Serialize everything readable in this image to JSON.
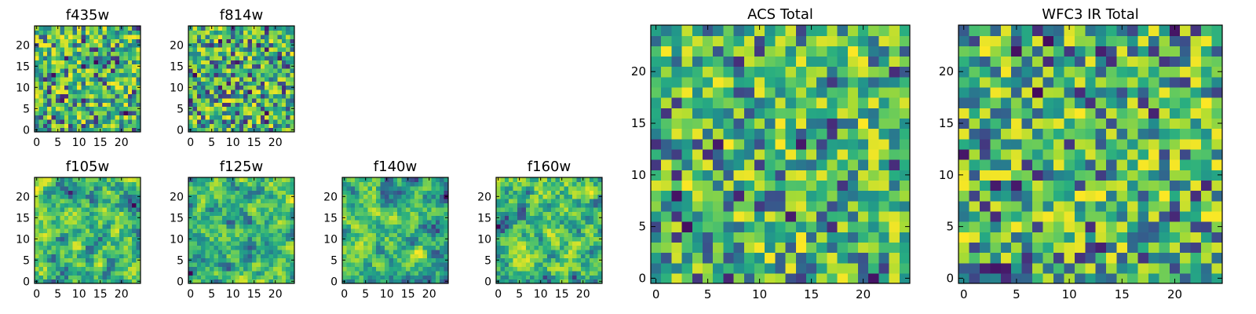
{
  "chart_data": {
    "type": "heatmap",
    "grid_size": 25,
    "colormap": "viridis",
    "panels": [
      {
        "id": "f435w",
        "title": "f435w",
        "xticks": [
          0,
          5,
          10,
          15,
          20
        ],
        "yticks": [
          0,
          5,
          10,
          15,
          20
        ],
        "xlim": [
          -0.5,
          24.5
        ],
        "ylim": [
          -0.5,
          24.5
        ],
        "value_range": [
          0,
          1
        ],
        "style": "noise",
        "seed": 11,
        "bias": 0.62
      },
      {
        "id": "f814w",
        "title": "f814w",
        "xticks": [
          0,
          5,
          10,
          15,
          20
        ],
        "yticks": [
          0,
          5,
          10,
          15,
          20
        ],
        "xlim": [
          -0.5,
          24.5
        ],
        "ylim": [
          -0.5,
          24.5
        ],
        "value_range": [
          0,
          1
        ],
        "style": "noise",
        "seed": 23,
        "bias": 0.6
      },
      {
        "id": "f105w",
        "title": "f105w",
        "xticks": [
          0,
          5,
          10,
          15,
          20
        ],
        "yticks": [
          0,
          5,
          10,
          15,
          20
        ],
        "xlim": [
          -0.5,
          24.5
        ],
        "ylim": [
          -0.5,
          24.5
        ],
        "value_range": [
          0,
          1
        ],
        "style": "smooth",
        "seed": 37,
        "bias": 0.62
      },
      {
        "id": "f125w",
        "title": "f125w",
        "xticks": [
          0,
          5,
          10,
          15,
          20
        ],
        "yticks": [
          0,
          5,
          10,
          15,
          20
        ],
        "xlim": [
          -0.5,
          24.5
        ],
        "ylim": [
          -0.5,
          24.5
        ],
        "value_range": [
          0,
          1
        ],
        "style": "smooth",
        "seed": 41,
        "bias": 0.7
      },
      {
        "id": "f140w",
        "title": "f140w",
        "xticks": [
          0,
          5,
          10,
          15,
          20
        ],
        "yticks": [
          0,
          5,
          10,
          15,
          20
        ],
        "xlim": [
          -0.5,
          24.5
        ],
        "ylim": [
          -0.5,
          24.5
        ],
        "value_range": [
          0,
          1
        ],
        "style": "smooth",
        "seed": 53,
        "bias": 0.6
      },
      {
        "id": "f160w",
        "title": "f160w",
        "xticks": [
          0,
          5,
          10,
          15,
          20
        ],
        "yticks": [
          0,
          5,
          10,
          15,
          20
        ],
        "xlim": [
          -0.5,
          24.5
        ],
        "ylim": [
          -0.5,
          24.5
        ],
        "value_range": [
          0,
          1
        ],
        "style": "smooth",
        "seed": 67,
        "bias": 0.64
      },
      {
        "id": "acs-total",
        "title": "ACS Total",
        "xticks": [
          0,
          5,
          10,
          15,
          20
        ],
        "yticks": [
          0,
          5,
          10,
          15,
          20
        ],
        "xlim": [
          -0.5,
          24.5
        ],
        "ylim": [
          -0.5,
          24.5
        ],
        "value_range": [
          0,
          1
        ],
        "style": "noise",
        "seed": 79,
        "bias": 0.66
      },
      {
        "id": "wfc3-ir-total",
        "title": "WFC3 IR Total",
        "xticks": [
          0,
          5,
          10,
          15,
          20
        ],
        "yticks": [
          0,
          5,
          10,
          15,
          20
        ],
        "xlim": [
          -0.5,
          24.5
        ],
        "ylim": [
          -0.5,
          24.5
        ],
        "value_range": [
          0,
          1
        ],
        "style": "noise",
        "seed": 97,
        "bias": 0.58
      }
    ]
  }
}
